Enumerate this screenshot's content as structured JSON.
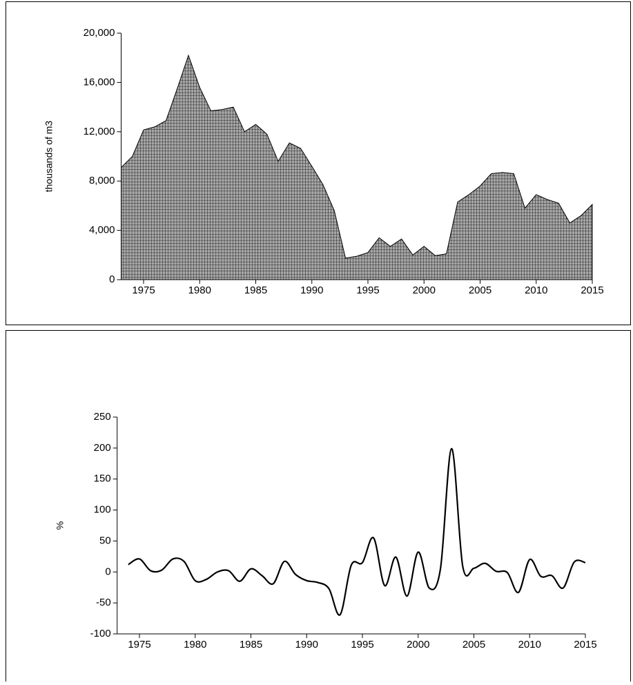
{
  "chart_data": [
    {
      "type": "area",
      "ylabel": "thousands of m3",
      "color": "#a8a8a8",
      "x": [
        1973,
        1974,
        1975,
        1976,
        1977,
        1978,
        1979,
        1980,
        1981,
        1982,
        1983,
        1984,
        1985,
        1986,
        1987,
        1988,
        1989,
        1990,
        1991,
        1992,
        1993,
        1994,
        1995,
        1996,
        1997,
        1998,
        1999,
        2000,
        2001,
        2002,
        2003,
        2004,
        2005,
        2006,
        2007,
        2008,
        2009,
        2010,
        2011,
        2012,
        2013,
        2014,
        2015
      ],
      "values": [
        9100,
        10000,
        12150,
        12400,
        12900,
        15500,
        18200,
        15600,
        13700,
        13800,
        14000,
        12000,
        12600,
        11800,
        9600,
        11100,
        10650,
        9200,
        7700,
        5600,
        1750,
        1900,
        2200,
        3400,
        2700,
        3300,
        2000,
        2700,
        1950,
        2100,
        6300,
        6900,
        7600,
        8600,
        8700,
        8600,
        5800,
        6900,
        6500,
        6200,
        4600,
        5200,
        6100
      ],
      "xlim": [
        1973,
        2015
      ],
      "xticks": [
        1975,
        1980,
        1985,
        1990,
        1995,
        2000,
        2005,
        2010,
        2015
      ],
      "ylim": [
        0,
        20000
      ],
      "yticks": [
        0,
        {
          "value": 4000,
          "label": "4,000"
        },
        {
          "value": 8000,
          "label": "8,000"
        },
        {
          "value": 12000,
          "label": "12,000"
        },
        {
          "value": 16000,
          "label": "16,000"
        },
        {
          "value": 20000,
          "label": "20,000"
        }
      ]
    },
    {
      "type": "line",
      "ylabel": "%",
      "color": "#000000",
      "x": [
        1974,
        1975,
        1976,
        1977,
        1978,
        1979,
        1980,
        1981,
        1982,
        1983,
        1984,
        1985,
        1986,
        1987,
        1988,
        1989,
        1990,
        1991,
        1992,
        1993,
        1994,
        1995,
        1996,
        1997,
        1998,
        1999,
        2000,
        2001,
        2002,
        2003,
        2004,
        2005,
        2006,
        2007,
        2008,
        2009,
        2010,
        2011,
        2012,
        2013,
        2014,
        2015
      ],
      "values": [
        12,
        21,
        2,
        3,
        21,
        17,
        -14,
        -12,
        0,
        2,
        -15,
        5,
        -6,
        -19,
        17,
        -4,
        -14,
        -17,
        -27,
        -69,
        11,
        15,
        55,
        -22,
        24,
        -39,
        32,
        -26,
        5,
        199,
        9,
        6,
        14,
        1,
        -1,
        -33,
        20,
        -7,
        -6,
        -26,
        16,
        15
      ],
      "xlim": [
        1973,
        2015
      ],
      "xticks": [
        1975,
        1980,
        1985,
        1990,
        1995,
        2000,
        2005,
        2010,
        2015
      ],
      "ylim": [
        -100,
        250
      ],
      "yticks": [
        -100,
        -50,
        0,
        50,
        100,
        150,
        200,
        250
      ]
    }
  ]
}
